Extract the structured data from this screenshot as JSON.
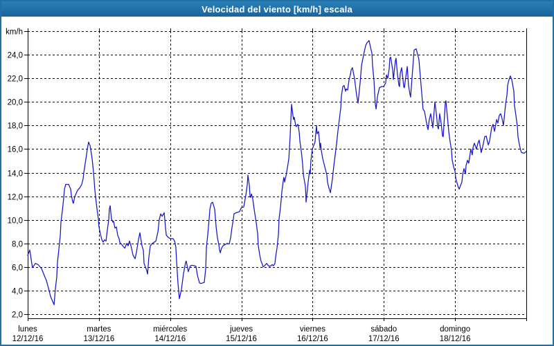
{
  "window": {
    "title": "Velocidad del viento [km/h] escala",
    "title_bar_color": "#1f6fa8",
    "border_color": "#1f6fa8",
    "background": "#ffffff"
  },
  "chart_data": {
    "type": "line",
    "title": "Velocidad del viento [km/h] escala",
    "ylabel": "km/h",
    "ylim": [
      2,
      26
    ],
    "y_tick_step": 2,
    "grid": true,
    "legend": "none",
    "series_name": "velocidad-del-viento",
    "series_color": "#1414cc",
    "grid_color": "#000000",
    "text_color": "#000000",
    "y_tick_labels": [
      {
        "v": 26,
        "label": "km/h"
      },
      {
        "v": 24,
        "label": "24,0"
      },
      {
        "v": 22,
        "label": "22,0"
      },
      {
        "v": 20,
        "label": "20,0"
      },
      {
        "v": 18,
        "label": "18,0"
      },
      {
        "v": 16,
        "label": "16,0"
      },
      {
        "v": 14,
        "label": "14,0"
      },
      {
        "v": 12,
        "label": "12,0"
      },
      {
        "v": 10,
        "label": "10,0"
      },
      {
        "v": 8,
        "label": "8,0"
      },
      {
        "v": 6,
        "label": "6,0"
      },
      {
        "v": 4,
        "label": "4,0"
      },
      {
        "v": 2,
        "label": "2,0"
      }
    ],
    "x_days": [
      {
        "name": "lunes",
        "date": "12/12/16"
      },
      {
        "name": "martes",
        "date": "13/12/16"
      },
      {
        "name": "miércoles",
        "date": "14/12/16"
      },
      {
        "name": "jueves",
        "date": "15/12/16"
      },
      {
        "name": "viernes",
        "date": "16/12/16"
      },
      {
        "name": "sábado",
        "date": "17/12/16"
      },
      {
        "name": "domingo",
        "date": "18/12/16"
      }
    ],
    "x_hours_range": [
      0,
      168
    ],
    "points": [
      [
        0.0,
        7.0
      ],
      [
        0.5,
        7.3
      ],
      [
        0.7,
        7.45
      ],
      [
        1.4,
        6.25
      ],
      [
        1.6,
        5.95
      ],
      [
        2.6,
        6.3
      ],
      [
        3.5,
        6.2
      ],
      [
        4.7,
        5.85
      ],
      [
        5.4,
        5.4
      ],
      [
        6.3,
        4.85
      ],
      [
        7.0,
        4.2
      ],
      [
        7.7,
        3.5
      ],
      [
        8.6,
        2.95
      ],
      [
        8.9,
        2.8
      ],
      [
        9.3,
        4.1
      ],
      [
        9.8,
        5.2
      ],
      [
        10.0,
        6.35
      ],
      [
        10.5,
        7.5
      ],
      [
        11.0,
        8.7
      ],
      [
        11.2,
        9.8
      ],
      [
        11.7,
        10.8
      ],
      [
        12.1,
        11.8
      ],
      [
        12.4,
        12.6
      ],
      [
        12.8,
        13.0
      ],
      [
        13.8,
        13.0
      ],
      [
        14.5,
        12.6
      ],
      [
        14.7,
        12.1
      ],
      [
        15.2,
        11.5
      ],
      [
        15.4,
        11.4
      ],
      [
        15.9,
        12.0
      ],
      [
        16.8,
        12.5
      ],
      [
        17.5,
        12.7
      ],
      [
        18.2,
        13.0
      ],
      [
        18.7,
        13.5
      ],
      [
        18.9,
        14.0
      ],
      [
        19.4,
        14.8
      ],
      [
        19.8,
        15.5
      ],
      [
        20.1,
        16.0
      ],
      [
        20.5,
        16.6
      ],
      [
        21.0,
        16.3
      ],
      [
        21.2,
        16.0
      ],
      [
        21.7,
        15.2
      ],
      [
        22.2,
        14.0
      ],
      [
        22.6,
        12.6
      ],
      [
        22.9,
        11.9
      ],
      [
        23.3,
        11.0
      ],
      [
        23.8,
        10.1
      ],
      [
        24.0,
        9.4
      ],
      [
        24.5,
        8.8
      ],
      [
        25.0,
        8.3
      ],
      [
        25.4,
        8.1
      ],
      [
        25.9,
        8.3
      ],
      [
        26.4,
        8.2
      ],
      [
        26.8,
        9.1
      ],
      [
        27.3,
        10.0
      ],
      [
        27.5,
        10.9
      ],
      [
        27.8,
        11.2
      ],
      [
        28.2,
        10.1
      ],
      [
        28.7,
        9.8
      ],
      [
        28.9,
        9.9
      ],
      [
        29.4,
        9.3
      ],
      [
        29.9,
        9.4
      ],
      [
        30.3,
        8.7
      ],
      [
        30.8,
        8.4
      ],
      [
        31.0,
        8.1
      ],
      [
        31.7,
        7.9
      ],
      [
        32.7,
        7.6
      ],
      [
        33.4,
        8.0
      ],
      [
        33.8,
        7.8
      ],
      [
        34.3,
        8.2
      ],
      [
        34.8,
        7.8
      ],
      [
        35.5,
        7.0
      ],
      [
        36.2,
        6.7
      ],
      [
        36.6,
        7.2
      ],
      [
        37.3,
        8.3
      ],
      [
        37.8,
        8.9
      ],
      [
        38.5,
        7.8
      ],
      [
        39.0,
        7.4
      ],
      [
        39.2,
        6.3
      ],
      [
        40.1,
        5.7
      ],
      [
        40.4,
        5.4
      ],
      [
        40.8,
        6.8
      ],
      [
        41.3,
        7.8
      ],
      [
        42.0,
        8.0
      ],
      [
        43.2,
        8.2
      ],
      [
        43.9,
        9.0
      ],
      [
        44.3,
        10.0
      ],
      [
        44.8,
        10.5
      ],
      [
        45.3,
        10.3
      ],
      [
        46.0,
        10.6
      ],
      [
        46.4,
        9.4
      ],
      [
        46.7,
        8.7
      ],
      [
        47.4,
        8.5
      ],
      [
        48.1,
        8.4
      ],
      [
        49.0,
        8.4
      ],
      [
        49.5,
        8.2
      ],
      [
        49.9,
        7.7
      ],
      [
        50.2,
        6.4
      ],
      [
        50.6,
        4.7
      ],
      [
        51.1,
        3.3
      ],
      [
        51.8,
        4.1
      ],
      [
        52.5,
        5.45
      ],
      [
        53.2,
        6.4
      ],
      [
        53.4,
        6.5
      ],
      [
        53.9,
        5.9
      ],
      [
        54.1,
        5.6
      ],
      [
        54.8,
        6.1
      ],
      [
        55.5,
        6.15
      ],
      [
        56.2,
        6.1
      ],
      [
        56.7,
        6.05
      ],
      [
        57.2,
        5.3
      ],
      [
        57.9,
        4.65
      ],
      [
        58.3,
        4.6
      ],
      [
        59.0,
        4.65
      ],
      [
        59.5,
        4.7
      ],
      [
        60.0,
        5.9
      ],
      [
        60.2,
        7.6
      ],
      [
        60.7,
        8.8
      ],
      [
        61.1,
        10.0
      ],
      [
        61.4,
        10.9
      ],
      [
        61.8,
        11.4
      ],
      [
        62.3,
        11.5
      ],
      [
        63.0,
        10.9
      ],
      [
        63.5,
        9.4
      ],
      [
        63.9,
        8.5
      ],
      [
        64.4,
        7.9
      ],
      [
        64.6,
        7.5
      ],
      [
        64.9,
        7.2
      ],
      [
        65.3,
        7.6
      ],
      [
        65.8,
        7.8
      ],
      [
        66.5,
        7.9
      ],
      [
        67.2,
        8.0
      ],
      [
        67.9,
        7.95
      ],
      [
        68.4,
        8.5
      ],
      [
        68.8,
        9.3
      ],
      [
        69.3,
        10.1
      ],
      [
        69.5,
        10.5
      ],
      [
        70.2,
        10.6
      ],
      [
        70.9,
        10.65
      ],
      [
        71.4,
        10.7
      ],
      [
        71.9,
        11.0
      ],
      [
        72.8,
        11.1
      ],
      [
        73.5,
        12.1
      ],
      [
        74.0,
        13.0
      ],
      [
        74.2,
        13.8
      ],
      [
        74.7,
        12.9
      ],
      [
        74.9,
        12.0
      ],
      [
        75.1,
        11.9
      ],
      [
        75.4,
        12.2
      ],
      [
        75.8,
        11.8
      ],
      [
        76.3,
        10.9
      ],
      [
        77.0,
        9.75
      ],
      [
        77.5,
        8.8
      ],
      [
        77.7,
        7.8
      ],
      [
        78.2,
        7.0
      ],
      [
        78.6,
        6.5
      ],
      [
        79.1,
        6.2
      ],
      [
        79.3,
        6.0
      ],
      [
        79.8,
        6.1
      ],
      [
        80.5,
        6.3
      ],
      [
        81.0,
        6.15
      ],
      [
        81.4,
        6.05
      ],
      [
        81.9,
        6.1
      ],
      [
        82.4,
        6.2
      ],
      [
        82.8,
        6.1
      ],
      [
        83.3,
        6.3
      ],
      [
        83.5,
        6.8
      ],
      [
        84.0,
        7.6
      ],
      [
        84.5,
        8.8
      ],
      [
        84.7,
        10.1
      ],
      [
        85.2,
        11.1
      ],
      [
        85.6,
        12.3
      ],
      [
        85.9,
        12.9
      ],
      [
        86.1,
        13.3
      ],
      [
        86.3,
        13.6
      ],
      [
        86.6,
        13.2
      ],
      [
        86.8,
        13.5
      ],
      [
        87.0,
        13.7
      ],
      [
        87.5,
        14.4
      ],
      [
        88.0,
        15.2
      ],
      [
        88.4,
        17.0
      ],
      [
        88.9,
        19.8
      ],
      [
        89.4,
        18.8
      ],
      [
        89.6,
        18.5
      ],
      [
        89.8,
        18.7
      ],
      [
        90.3,
        18.0
      ],
      [
        90.5,
        17.9
      ],
      [
        91.0,
        18.1
      ],
      [
        91.2,
        17.9
      ],
      [
        91.5,
        17.4
      ],
      [
        91.7,
        16.7
      ],
      [
        92.2,
        15.8
      ],
      [
        92.6,
        14.8
      ],
      [
        92.9,
        13.8
      ],
      [
        93.3,
        13.2
      ],
      [
        93.6,
        12.8
      ],
      [
        93.8,
        11.5
      ],
      [
        94.5,
        13.2
      ],
      [
        95.0,
        14.2
      ],
      [
        95.2,
        13.9
      ],
      [
        95.4,
        15.0
      ],
      [
        95.9,
        16.0
      ],
      [
        96.8,
        16.6
      ],
      [
        97.3,
        18.0
      ],
      [
        97.5,
        17.3
      ],
      [
        98.0,
        17.5
      ],
      [
        98.5,
        16.1
      ],
      [
        98.7,
        16.5
      ],
      [
        98.9,
        15.9
      ],
      [
        99.4,
        15.2
      ],
      [
        100.1,
        14.5
      ],
      [
        100.8,
        13.8
      ],
      [
        101.0,
        13.2
      ],
      [
        101.5,
        12.7
      ],
      [
        102.0,
        12.3
      ],
      [
        102.7,
        13.5
      ],
      [
        103.1,
        14.5
      ],
      [
        103.6,
        15.5
      ],
      [
        104.1,
        16.5
      ],
      [
        104.5,
        17.5
      ],
      [
        105.0,
        18.5
      ],
      [
        105.5,
        19.5
      ],
      [
        105.7,
        20.5
      ],
      [
        106.2,
        21.3
      ],
      [
        106.6,
        21.4
      ],
      [
        107.1,
        20.9
      ],
      [
        107.3,
        21.1
      ],
      [
        107.8,
        21.0
      ],
      [
        108.3,
        21.9
      ],
      [
        108.7,
        22.3
      ],
      [
        109.0,
        22.7
      ],
      [
        109.4,
        22.9
      ],
      [
        110.1,
        22.0
      ],
      [
        110.8,
        20.6
      ],
      [
        111.3,
        19.9
      ],
      [
        112.0,
        21.6
      ],
      [
        112.5,
        23.1
      ],
      [
        113.2,
        24.0
      ],
      [
        113.9,
        24.8
      ],
      [
        114.3,
        25.0
      ],
      [
        115.0,
        25.2
      ],
      [
        116.0,
        24.1
      ],
      [
        116.2,
        23.1
      ],
      [
        116.7,
        21.75
      ],
      [
        117.1,
        19.85
      ],
      [
        117.4,
        19.4
      ],
      [
        117.8,
        20.4
      ],
      [
        118.5,
        21.2
      ],
      [
        119.2,
        21.3
      ],
      [
        119.9,
        21.3
      ],
      [
        120.6,
        21.6
      ],
      [
        120.9,
        22.3
      ],
      [
        121.3,
        22.0
      ],
      [
        121.8,
        22.8
      ],
      [
        122.0,
        23.7
      ],
      [
        122.3,
        23.8
      ],
      [
        123.0,
        22.7
      ],
      [
        123.2,
        21.9
      ],
      [
        123.9,
        23.5
      ],
      [
        124.1,
        23.7
      ],
      [
        124.6,
        22.3
      ],
      [
        125.1,
        21.4
      ],
      [
        125.3,
        21.3
      ],
      [
        125.5,
        22.4
      ],
      [
        126.0,
        22.9
      ],
      [
        126.7,
        21.3
      ],
      [
        126.9,
        21.2
      ],
      [
        127.6,
        22.5
      ],
      [
        127.9,
        23.0
      ],
      [
        128.3,
        21.4
      ],
      [
        128.8,
        20.65
      ],
      [
        129.0,
        20.4
      ],
      [
        130.0,
        23.7
      ],
      [
        130.2,
        24.4
      ],
      [
        130.9,
        24.5
      ],
      [
        131.8,
        23.6
      ],
      [
        132.5,
        21.5
      ],
      [
        133.2,
        19.4
      ],
      [
        133.7,
        19.2
      ],
      [
        134.6,
        17.9
      ],
      [
        134.9,
        17.65
      ],
      [
        135.3,
        18.5
      ],
      [
        135.8,
        19.0
      ],
      [
        136.5,
        17.8
      ],
      [
        137.2,
        20.0
      ],
      [
        137.7,
        19.0
      ],
      [
        138.1,
        17.9
      ],
      [
        138.4,
        17.7
      ],
      [
        138.8,
        19.0
      ],
      [
        139.3,
        18.2
      ],
      [
        139.8,
        17.1
      ],
      [
        140.0,
        17.05
      ],
      [
        140.7,
        19.9
      ],
      [
        140.9,
        20.1
      ],
      [
        141.9,
        17.45
      ],
      [
        142.3,
        16.65
      ],
      [
        142.8,
        15.9
      ],
      [
        143.0,
        15.1
      ],
      [
        143.5,
        14.5
      ],
      [
        144.0,
        14.1
      ],
      [
        144.2,
        13.55
      ],
      [
        144.7,
        13.1
      ],
      [
        145.1,
        12.75
      ],
      [
        145.4,
        12.6
      ],
      [
        145.8,
        12.9
      ],
      [
        146.3,
        13.2
      ],
      [
        146.5,
        13.75
      ],
      [
        147.0,
        14.35
      ],
      [
        147.5,
        13.9
      ],
      [
        147.7,
        14.6
      ],
      [
        148.2,
        15.05
      ],
      [
        148.6,
        14.8
      ],
      [
        149.3,
        16.0
      ],
      [
        149.8,
        15.5
      ],
      [
        150.0,
        16.1
      ],
      [
        150.5,
        16.5
      ],
      [
        151.2,
        16.0
      ],
      [
        151.7,
        16.5
      ],
      [
        152.1,
        16.75
      ],
      [
        152.8,
        15.7
      ],
      [
        153.3,
        16.2
      ],
      [
        154.0,
        17.05
      ],
      [
        154.5,
        17.1
      ],
      [
        155.2,
        16.35
      ],
      [
        155.6,
        16.65
      ],
      [
        156.3,
        17.8
      ],
      [
        156.8,
        18.1
      ],
      [
        157.3,
        17.5
      ],
      [
        158.0,
        18.5
      ],
      [
        158.4,
        18.2
      ],
      [
        158.9,
        18.85
      ],
      [
        159.4,
        19.0
      ],
      [
        159.8,
        18.6
      ],
      [
        160.3,
        18.0
      ],
      [
        161.0,
        19.75
      ],
      [
        161.5,
        20.6
      ],
      [
        161.7,
        21.4
      ],
      [
        162.2,
        21.9
      ],
      [
        162.6,
        22.2
      ],
      [
        163.1,
        21.9
      ],
      [
        163.8,
        20.9
      ],
      [
        164.0,
        19.7
      ],
      [
        164.5,
        18.85
      ],
      [
        165.0,
        17.9
      ],
      [
        165.2,
        17.05
      ],
      [
        165.7,
        16.35
      ],
      [
        166.1,
        15.9
      ],
      [
        166.4,
        15.7
      ],
      [
        167.3,
        15.65
      ],
      [
        168.0,
        15.8
      ]
    ]
  }
}
